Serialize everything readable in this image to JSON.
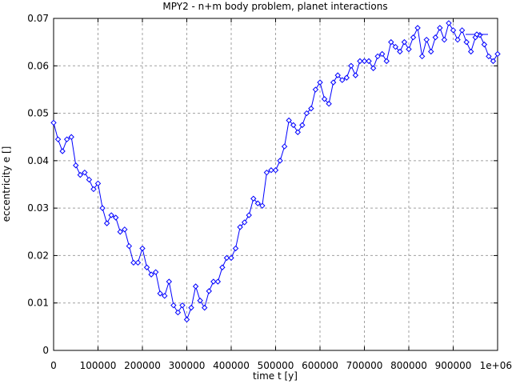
{
  "chart_data": {
    "type": "line",
    "title": "MPY2 - n+m body problem, planet interactions",
    "xlabel": "time t [y]",
    "ylabel": "eccentricity e []",
    "xlim": [
      0,
      1000000
    ],
    "ylim": [
      0,
      0.07
    ],
    "grid": true,
    "legend": "top-right",
    "x_ticks": [
      "0",
      "100000",
      "200000",
      "300000",
      "400000",
      "500000",
      "600000",
      "700000",
      "800000",
      "900000",
      "1e+06"
    ],
    "y_ticks": [
      "0",
      "0.01",
      "0.02",
      "0.03",
      "0.04",
      "0.05",
      "0.06",
      "0.07"
    ],
    "series": [
      {
        "color": "#0000ff",
        "marker": "diamond",
        "x": [
          0,
          10000,
          20000,
          30000,
          40000,
          50000,
          60000,
          70000,
          80000,
          90000,
          100000,
          110000,
          120000,
          130000,
          140000,
          150000,
          160000,
          170000,
          180000,
          190000,
          200000,
          210000,
          220000,
          230000,
          240000,
          250000,
          260000,
          270000,
          280000,
          290000,
          300000,
          310000,
          320000,
          330000,
          340000,
          350000,
          360000,
          370000,
          380000,
          390000,
          400000,
          410000,
          420000,
          430000,
          440000,
          450000,
          460000,
          470000,
          480000,
          490000,
          500000,
          510000,
          520000,
          530000,
          540000,
          550000,
          560000,
          570000,
          580000,
          590000,
          600000,
          610000,
          620000,
          630000,
          640000,
          650000,
          660000,
          670000,
          680000,
          690000,
          700000,
          710000,
          720000,
          730000,
          740000,
          750000,
          760000,
          770000,
          780000,
          790000,
          800000,
          810000,
          820000,
          830000,
          840000,
          850000,
          860000,
          870000,
          880000,
          890000,
          900000,
          910000,
          920000,
          930000,
          940000,
          950000,
          960000,
          970000,
          980000,
          990000,
          1000000
        ],
        "y": [
          0.048,
          0.0445,
          0.042,
          0.0445,
          0.045,
          0.039,
          0.037,
          0.0375,
          0.036,
          0.034,
          0.0352,
          0.03,
          0.0268,
          0.0285,
          0.028,
          0.025,
          0.0255,
          0.022,
          0.0185,
          0.0185,
          0.0215,
          0.0175,
          0.016,
          0.0165,
          0.012,
          0.0115,
          0.0145,
          0.0095,
          0.008,
          0.0095,
          0.0065,
          0.009,
          0.0135,
          0.0105,
          0.009,
          0.0125,
          0.0145,
          0.0145,
          0.0175,
          0.0195,
          0.0195,
          0.0215,
          0.026,
          0.027,
          0.0285,
          0.032,
          0.031,
          0.0305,
          0.0375,
          0.038,
          0.038,
          0.04,
          0.043,
          0.0485,
          0.0475,
          0.046,
          0.0475,
          0.05,
          0.051,
          0.055,
          0.0565,
          0.053,
          0.052,
          0.0565,
          0.058,
          0.057,
          0.0575,
          0.06,
          0.058,
          0.061,
          0.061,
          0.061,
          0.0595,
          0.062,
          0.0625,
          0.061,
          0.065,
          0.064,
          0.063,
          0.065,
          0.0635,
          0.066,
          0.068,
          0.062,
          0.0655,
          0.063,
          0.066,
          0.068,
          0.0655,
          0.069,
          0.0675,
          0.0655,
          0.0675,
          0.065,
          0.063,
          0.066,
          0.0665,
          0.0645,
          0.062,
          0.061,
          0.0625
        ]
      }
    ]
  }
}
